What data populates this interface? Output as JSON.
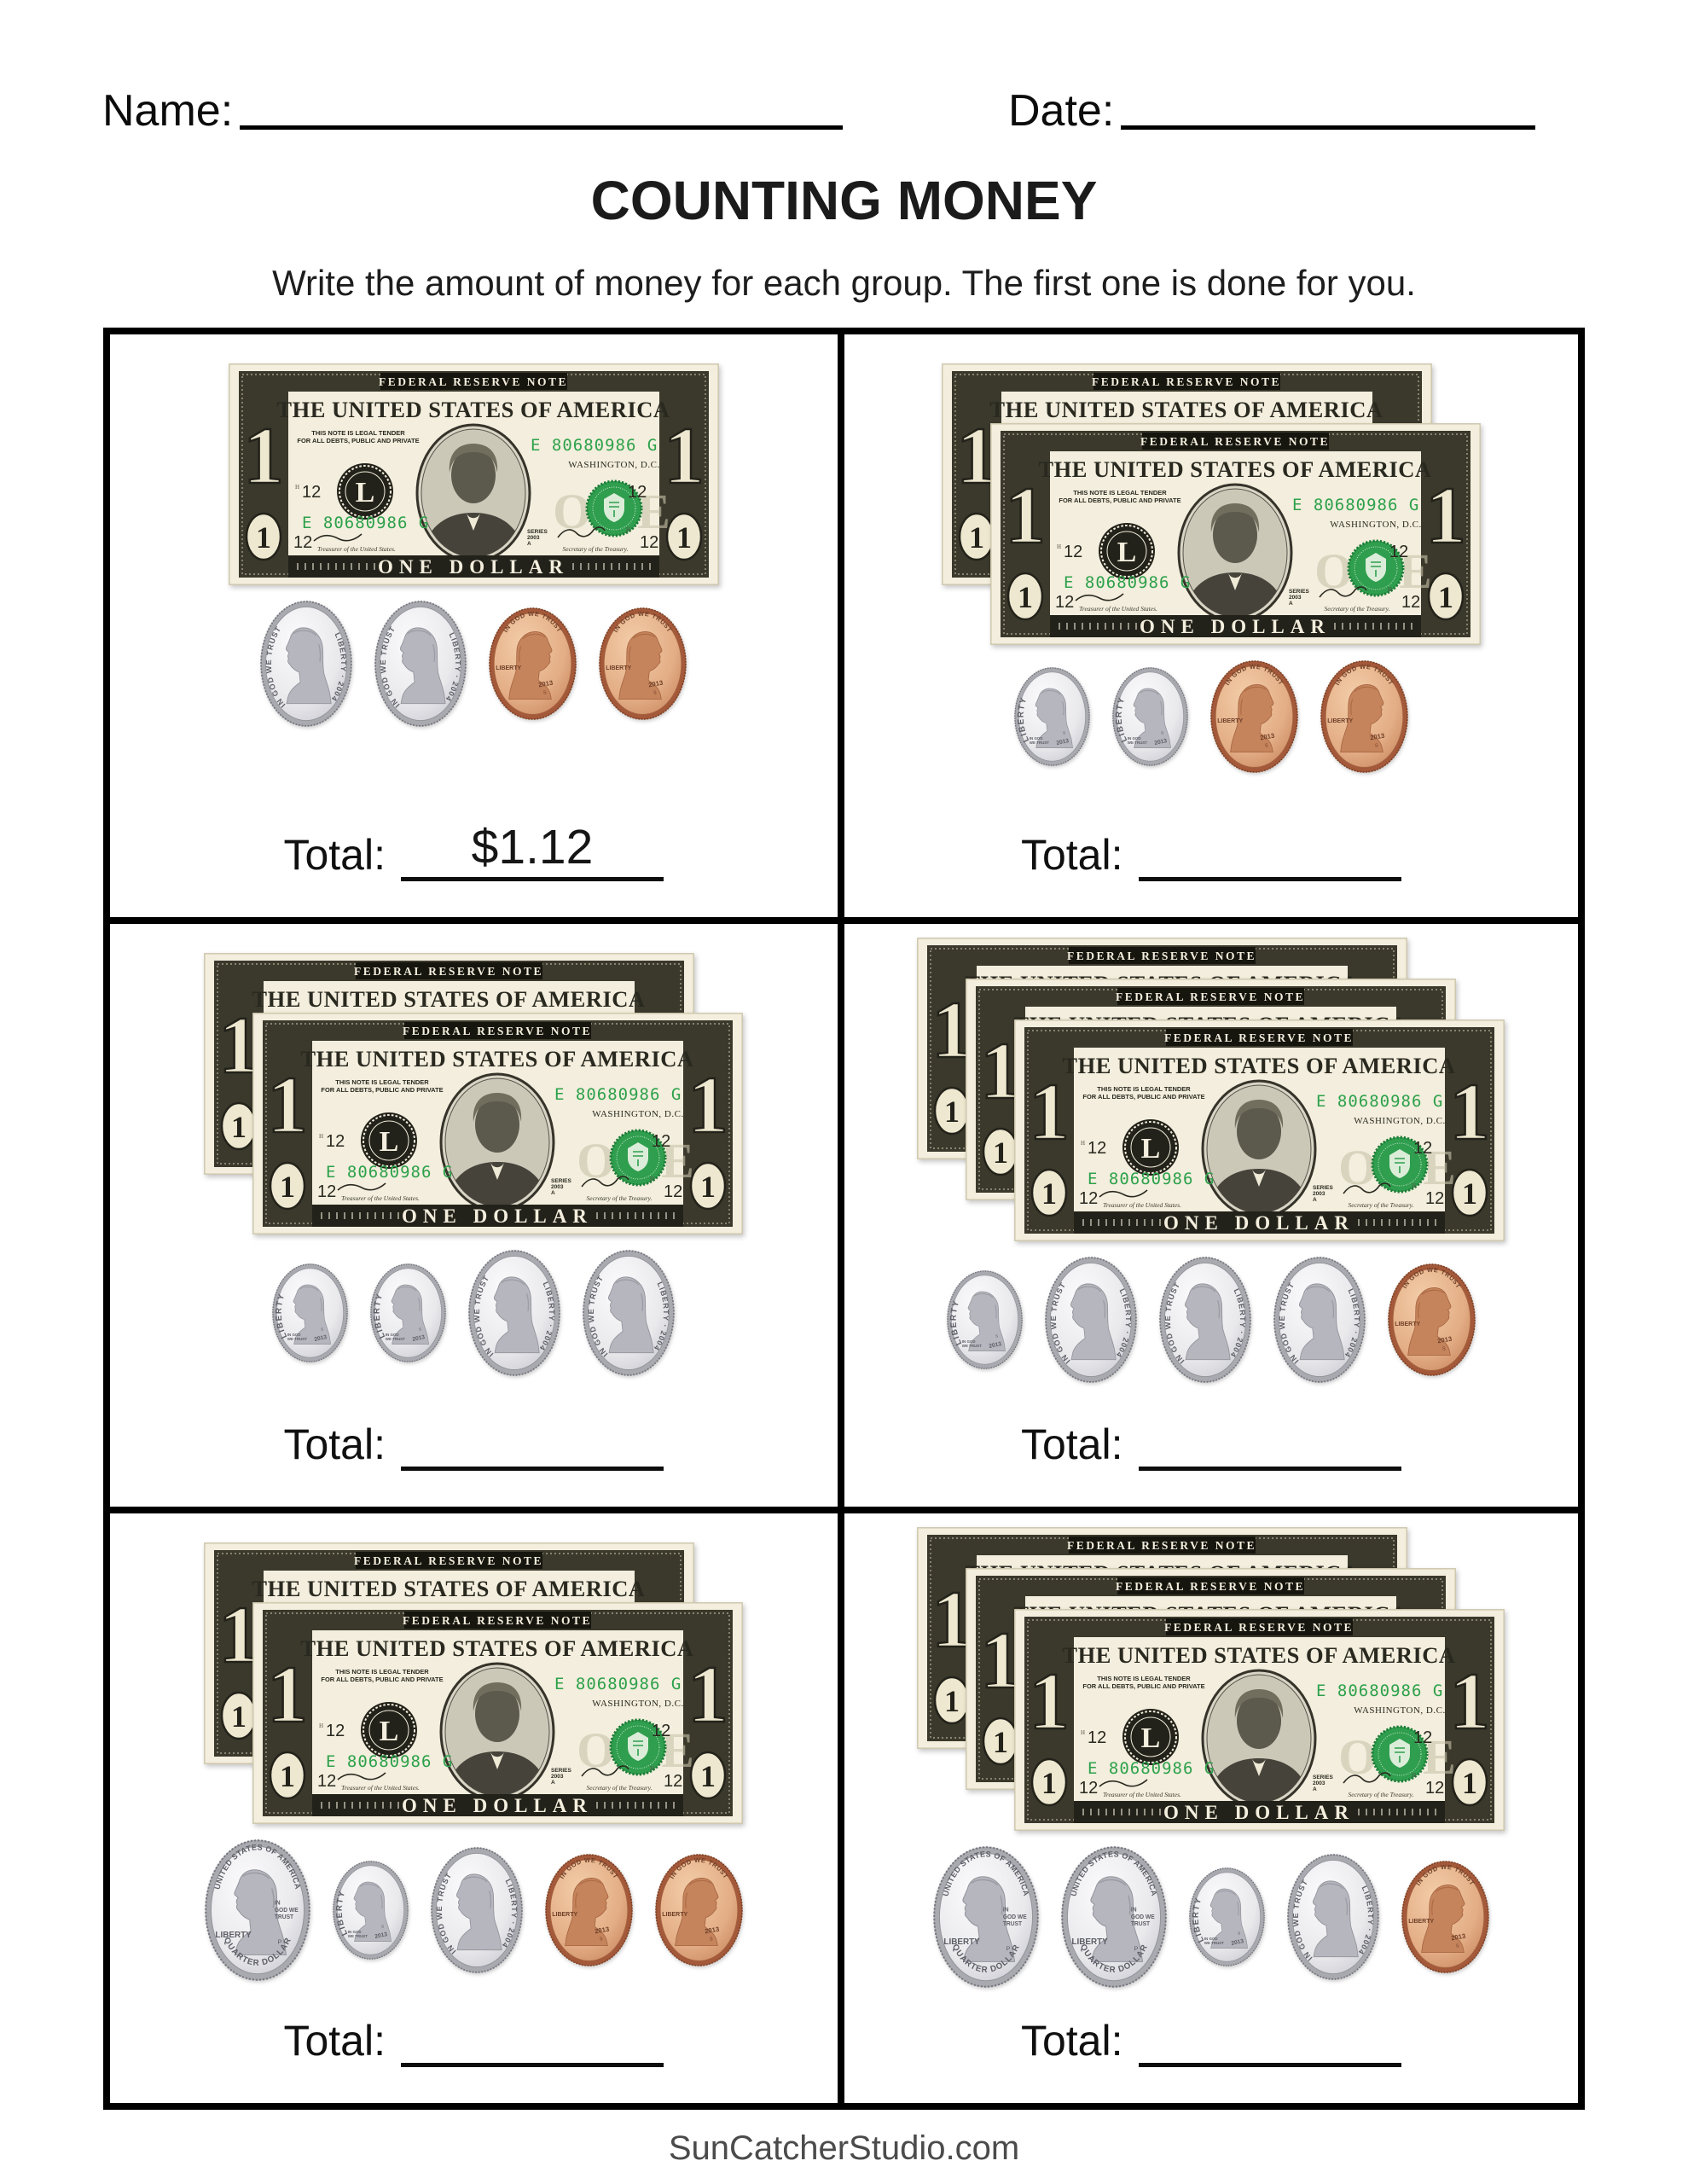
{
  "header": {
    "name_label": "Name:",
    "date_label": "Date:"
  },
  "title": "COUNTING MONEY",
  "instructions": "Write the amount of money for each group. The first one is done for you.",
  "total_label": "Total:",
  "footer": "SunCatcherStudio.com",
  "colors": {
    "serial_green": "#2da14b",
    "seal_green": "#2f9e4e",
    "grid_black": "#000000",
    "footer_gray": "#4b4b4b"
  },
  "bill": {
    "top_banner": "FEDERAL RESERVE NOTE",
    "country": "THE UNITED STATES OF AMERICA",
    "legal_tender_line1": "THIS NOTE IS LEGAL TENDER",
    "legal_tender_line2": "FOR ALL DEBTS, PUBLIC AND PRIVATE",
    "serial_number": "E 80680986 G",
    "city": "WASHINGTON, D.C.",
    "seal_letter": "L",
    "district_number": "12",
    "corner_numeral": "1",
    "faint_word": "ONE",
    "denomination": "ONE DOLLAR",
    "series_lines": [
      "SERIES",
      "2003",
      "A"
    ],
    "treasurer_title": "Treasurer of the United States.",
    "secretary_title": "Secretary of the Treasury.",
    "plate_mark_left": "H",
    "plate_mark_right": "H"
  },
  "palettes": {
    "silver": {
      "rim": "#a9a9b0",
      "edge": "#77777f",
      "face": "#e9e9ec",
      "hilite": "#fbfbfd",
      "lowlite": "#cfcfd6",
      "relief": "#b6b6be",
      "shade": "#93939c",
      "text": "#5d5d66"
    },
    "copper": {
      "rim": "#a3593a",
      "edge": "#7d4226",
      "face": "#e3ad85",
      "hilite": "#f3cda9",
      "lowlite": "#cf9068",
      "relief": "#c5845c",
      "shade": "#a5643f",
      "text": "#6e3f28"
    }
  },
  "coins": {
    "quarter": {
      "width": 124,
      "height": 166,
      "palette": "silver",
      "facing": "left",
      "top_arc": "UNITED STATES OF AMERICA",
      "bottom_arc": "QUARTER DOLLAR",
      "left_label": "LIBERTY",
      "right_label_lines": [
        "IN",
        "GOD WE",
        "TRUST"
      ],
      "mint_mark": "P"
    },
    "dime": {
      "width": 89,
      "height": 116,
      "palette": "silver",
      "facing": "left",
      "left_arc": "LIBERTY",
      "small_lines": [
        "IN GOD",
        "WE TRUST"
      ],
      "year": "2013",
      "mint_mark": "S"
    },
    "nickel": {
      "width": 108,
      "height": 148,
      "palette": "silver",
      "facing": "left",
      "left_arc": "IN GOD WE TRUST",
      "right_arc": "LIBERTY · 2004"
    },
    "penny": {
      "width": 103,
      "height": 132,
      "palette": "copper",
      "facing": "right",
      "top_arc": "IN GOD WE TRUST",
      "left_label": "LIBERTY",
      "year": "2013",
      "mint_mark": "S"
    }
  },
  "cells": [
    {
      "bills": 1,
      "coins": [
        "nickel",
        "nickel",
        "penny",
        "penny"
      ],
      "total_value": "$1.12"
    },
    {
      "bills": 2,
      "coins": [
        "dime",
        "dime",
        "penny",
        "penny"
      ],
      "total_value": ""
    },
    {
      "bills": 2,
      "coins": [
        "dime",
        "dime",
        "nickel",
        "nickel"
      ],
      "total_value": ""
    },
    {
      "bills": 3,
      "coins": [
        "dime",
        "nickel",
        "nickel",
        "nickel",
        "penny"
      ],
      "total_value": ""
    },
    {
      "bills": 2,
      "coins": [
        "quarter",
        "dime",
        "nickel",
        "penny",
        "penny"
      ],
      "total_value": ""
    },
    {
      "bills": 3,
      "coins": [
        "quarter",
        "quarter",
        "dime",
        "nickel",
        "penny"
      ],
      "total_value": ""
    }
  ]
}
